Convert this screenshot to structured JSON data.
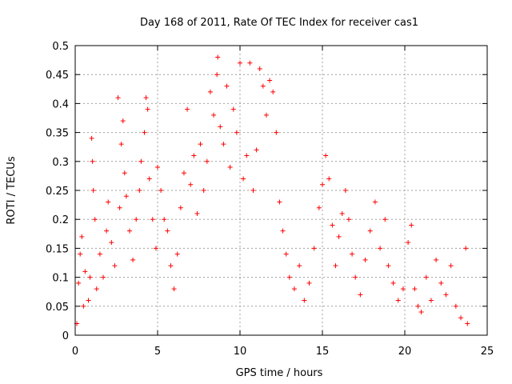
{
  "chart_data": {
    "type": "scatter",
    "title": "Day 168 of 2011, Rate Of TEC Index for receiver cas1",
    "xlabel": "GPS time / hours",
    "ylabel": "ROTI / TECUs",
    "xlim": [
      0,
      25
    ],
    "ylim": [
      0,
      0.5
    ],
    "xticks": [
      "0",
      "5",
      "10",
      "15",
      "20",
      "25"
    ],
    "yticks": [
      "0",
      "0.05",
      "0.1",
      "0.15",
      "0.2",
      "0.25",
      "0.3",
      "0.35",
      "0.4",
      "0.45",
      "0.5"
    ],
    "grid": true,
    "marker": "plus",
    "series": [
      {
        "color": "#ff0000",
        "points": [
          [
            0.1,
            0.02
          ],
          [
            0.2,
            0.09
          ],
          [
            0.3,
            0.14
          ],
          [
            0.4,
            0.17
          ],
          [
            0.5,
            0.05
          ],
          [
            0.6,
            0.11
          ],
          [
            0.8,
            0.06
          ],
          [
            0.9,
            0.1
          ],
          [
            1.0,
            0.34
          ],
          [
            1.05,
            0.3
          ],
          [
            1.1,
            0.25
          ],
          [
            1.2,
            0.2
          ],
          [
            1.3,
            0.08
          ],
          [
            1.5,
            0.14
          ],
          [
            1.7,
            0.1
          ],
          [
            1.9,
            0.18
          ],
          [
            2.0,
            0.23
          ],
          [
            2.2,
            0.16
          ],
          [
            2.4,
            0.12
          ],
          [
            2.6,
            0.41
          ],
          [
            2.7,
            0.22
          ],
          [
            2.8,
            0.33
          ],
          [
            2.9,
            0.37
          ],
          [
            3.0,
            0.28
          ],
          [
            3.1,
            0.24
          ],
          [
            3.3,
            0.18
          ],
          [
            3.5,
            0.13
          ],
          [
            3.7,
            0.2
          ],
          [
            3.9,
            0.25
          ],
          [
            4.0,
            0.3
          ],
          [
            4.2,
            0.35
          ],
          [
            4.3,
            0.41
          ],
          [
            4.4,
            0.39
          ],
          [
            4.5,
            0.27
          ],
          [
            4.7,
            0.2
          ],
          [
            4.9,
            0.15
          ],
          [
            5.0,
            0.29
          ],
          [
            5.2,
            0.25
          ],
          [
            5.4,
            0.2
          ],
          [
            5.6,
            0.18
          ],
          [
            5.8,
            0.12
          ],
          [
            6.0,
            0.08
          ],
          [
            6.2,
            0.14
          ],
          [
            6.4,
            0.22
          ],
          [
            6.6,
            0.28
          ],
          [
            6.8,
            0.39
          ],
          [
            7.0,
            0.26
          ],
          [
            7.2,
            0.31
          ],
          [
            7.4,
            0.21
          ],
          [
            7.6,
            0.33
          ],
          [
            7.8,
            0.25
          ],
          [
            8.0,
            0.3
          ],
          [
            8.2,
            0.42
          ],
          [
            8.4,
            0.38
          ],
          [
            8.6,
            0.45
          ],
          [
            8.65,
            0.48
          ],
          [
            8.8,
            0.36
          ],
          [
            9.0,
            0.33
          ],
          [
            9.2,
            0.43
          ],
          [
            9.4,
            0.29
          ],
          [
            9.6,
            0.39
          ],
          [
            9.8,
            0.35
          ],
          [
            10.0,
            0.47
          ],
          [
            10.2,
            0.27
          ],
          [
            10.4,
            0.31
          ],
          [
            10.6,
            0.47
          ],
          [
            10.8,
            0.25
          ],
          [
            11.0,
            0.32
          ],
          [
            11.2,
            0.46
          ],
          [
            11.4,
            0.43
          ],
          [
            11.6,
            0.38
          ],
          [
            11.8,
            0.44
          ],
          [
            12.0,
            0.42
          ],
          [
            12.2,
            0.35
          ],
          [
            12.4,
            0.23
          ],
          [
            12.6,
            0.18
          ],
          [
            12.8,
            0.14
          ],
          [
            13.0,
            0.1
          ],
          [
            13.3,
            0.08
          ],
          [
            13.6,
            0.12
          ],
          [
            13.9,
            0.06
          ],
          [
            14.2,
            0.09
          ],
          [
            14.5,
            0.15
          ],
          [
            14.8,
            0.22
          ],
          [
            15.0,
            0.26
          ],
          [
            15.2,
            0.31
          ],
          [
            15.4,
            0.27
          ],
          [
            15.6,
            0.19
          ],
          [
            15.8,
            0.12
          ],
          [
            16.0,
            0.17
          ],
          [
            16.2,
            0.21
          ],
          [
            16.4,
            0.25
          ],
          [
            16.6,
            0.2
          ],
          [
            16.8,
            0.14
          ],
          [
            17.0,
            0.1
          ],
          [
            17.3,
            0.07
          ],
          [
            17.6,
            0.13
          ],
          [
            17.9,
            0.18
          ],
          [
            18.2,
            0.23
          ],
          [
            18.5,
            0.15
          ],
          [
            18.8,
            0.2
          ],
          [
            19.0,
            0.12
          ],
          [
            19.3,
            0.09
          ],
          [
            19.6,
            0.06
          ],
          [
            19.9,
            0.08
          ],
          [
            20.2,
            0.16
          ],
          [
            20.4,
            0.19
          ],
          [
            20.6,
            0.08
          ],
          [
            20.8,
            0.05
          ],
          [
            21.0,
            0.04
          ],
          [
            21.3,
            0.1
          ],
          [
            21.6,
            0.06
          ],
          [
            21.9,
            0.13
          ],
          [
            22.2,
            0.09
          ],
          [
            22.5,
            0.07
          ],
          [
            22.8,
            0.12
          ],
          [
            23.1,
            0.05
          ],
          [
            23.4,
            0.03
          ],
          [
            23.7,
            0.15
          ],
          [
            23.8,
            0.02
          ]
        ]
      }
    ]
  }
}
